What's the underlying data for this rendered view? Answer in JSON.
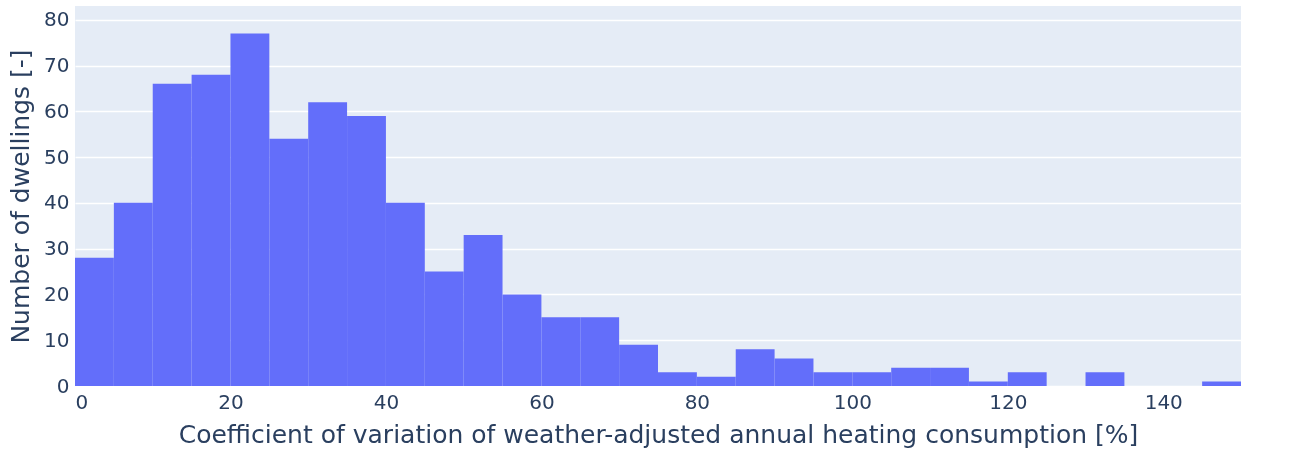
{
  "chart_data": {
    "type": "histogram",
    "xlabel": "Coefficient of variation of weather-adjusted annual heating consumption [%]",
    "ylabel": "Number of dwellings [-]",
    "bins": [
      0,
      5,
      10,
      15,
      20,
      25,
      30,
      35,
      40,
      45,
      50,
      55,
      60,
      65,
      70,
      75,
      80,
      85,
      90,
      95,
      100,
      105,
      110,
      115,
      120,
      125,
      130,
      135,
      140,
      145,
      150
    ],
    "values": [
      28,
      40,
      66,
      68,
      77,
      54,
      62,
      59,
      40,
      25,
      33,
      20,
      15,
      15,
      9,
      3,
      2,
      8,
      6,
      3,
      3,
      4,
      4,
      1,
      3,
      0,
      3,
      0,
      0,
      1
    ],
    "color": "#636efa",
    "xlim": [
      0,
      150
    ],
    "xticks": [
      0,
      20,
      40,
      60,
      80,
      100,
      120,
      140
    ],
    "ylim": [
      0,
      83
    ],
    "yticks": [
      0,
      10,
      20,
      30,
      40,
      50,
      60,
      70,
      80
    ],
    "grid": "y"
  }
}
